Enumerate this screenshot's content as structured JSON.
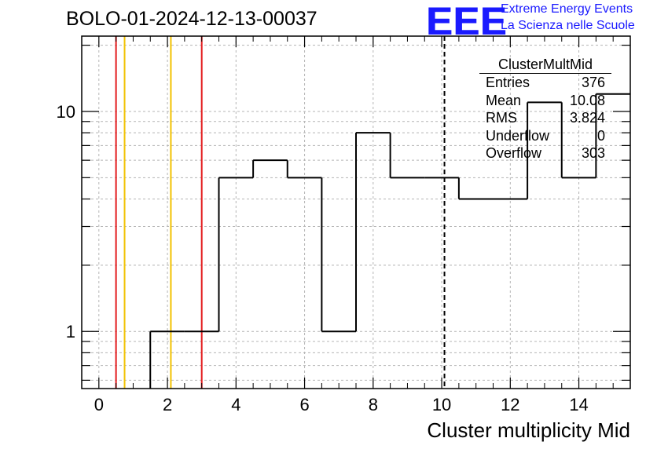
{
  "title": "BOLO-01-2024-12-13-00037",
  "logo": {
    "mark": "EEE",
    "line1": "Extreme Energy Events",
    "line2": "La Scienza nelle Scuole"
  },
  "stats": {
    "name": "ClusterMultMid",
    "rows": [
      {
        "label": "Entries",
        "value": "376"
      },
      {
        "label": "Mean",
        "value": "10.08"
      },
      {
        "label": "RMS",
        "value": "3.824"
      },
      {
        "label": "Underflow",
        "value": "0"
      },
      {
        "label": "Overflow",
        "value": "303"
      }
    ]
  },
  "chart_data": {
    "type": "histogram",
    "xlabel": "Cluster multiplicity Mid",
    "ylabel": "",
    "xlim": [
      -0.5,
      15.5
    ],
    "ylim": [
      0.55,
      22
    ],
    "yscale": "log",
    "grid": true,
    "xticks": [
      0,
      2,
      4,
      6,
      8,
      10,
      12,
      14
    ],
    "yticks": [
      1,
      10
    ],
    "bin_edges": [
      1.5,
      2.5,
      3.5,
      4.5,
      5.5,
      6.5,
      7.5,
      8.5,
      9.5,
      10.5,
      11.5,
      12.5,
      13.5,
      14.5,
      15.5
    ],
    "bin_counts": [
      1,
      1,
      5,
      6,
      5,
      1,
      8,
      5,
      5,
      4,
      4,
      11,
      5,
      12
    ],
    "vertical_lines": [
      {
        "x": 0.5,
        "color": "#e31a1c",
        "style": "solid"
      },
      {
        "x": 0.75,
        "color": "#f2c200",
        "style": "solid"
      },
      {
        "x": 2.1,
        "color": "#f2c200",
        "style": "solid"
      },
      {
        "x": 3.0,
        "color": "#e31a1c",
        "style": "solid"
      },
      {
        "x": 10.08,
        "color": "#000000",
        "style": "dashed"
      }
    ]
  }
}
